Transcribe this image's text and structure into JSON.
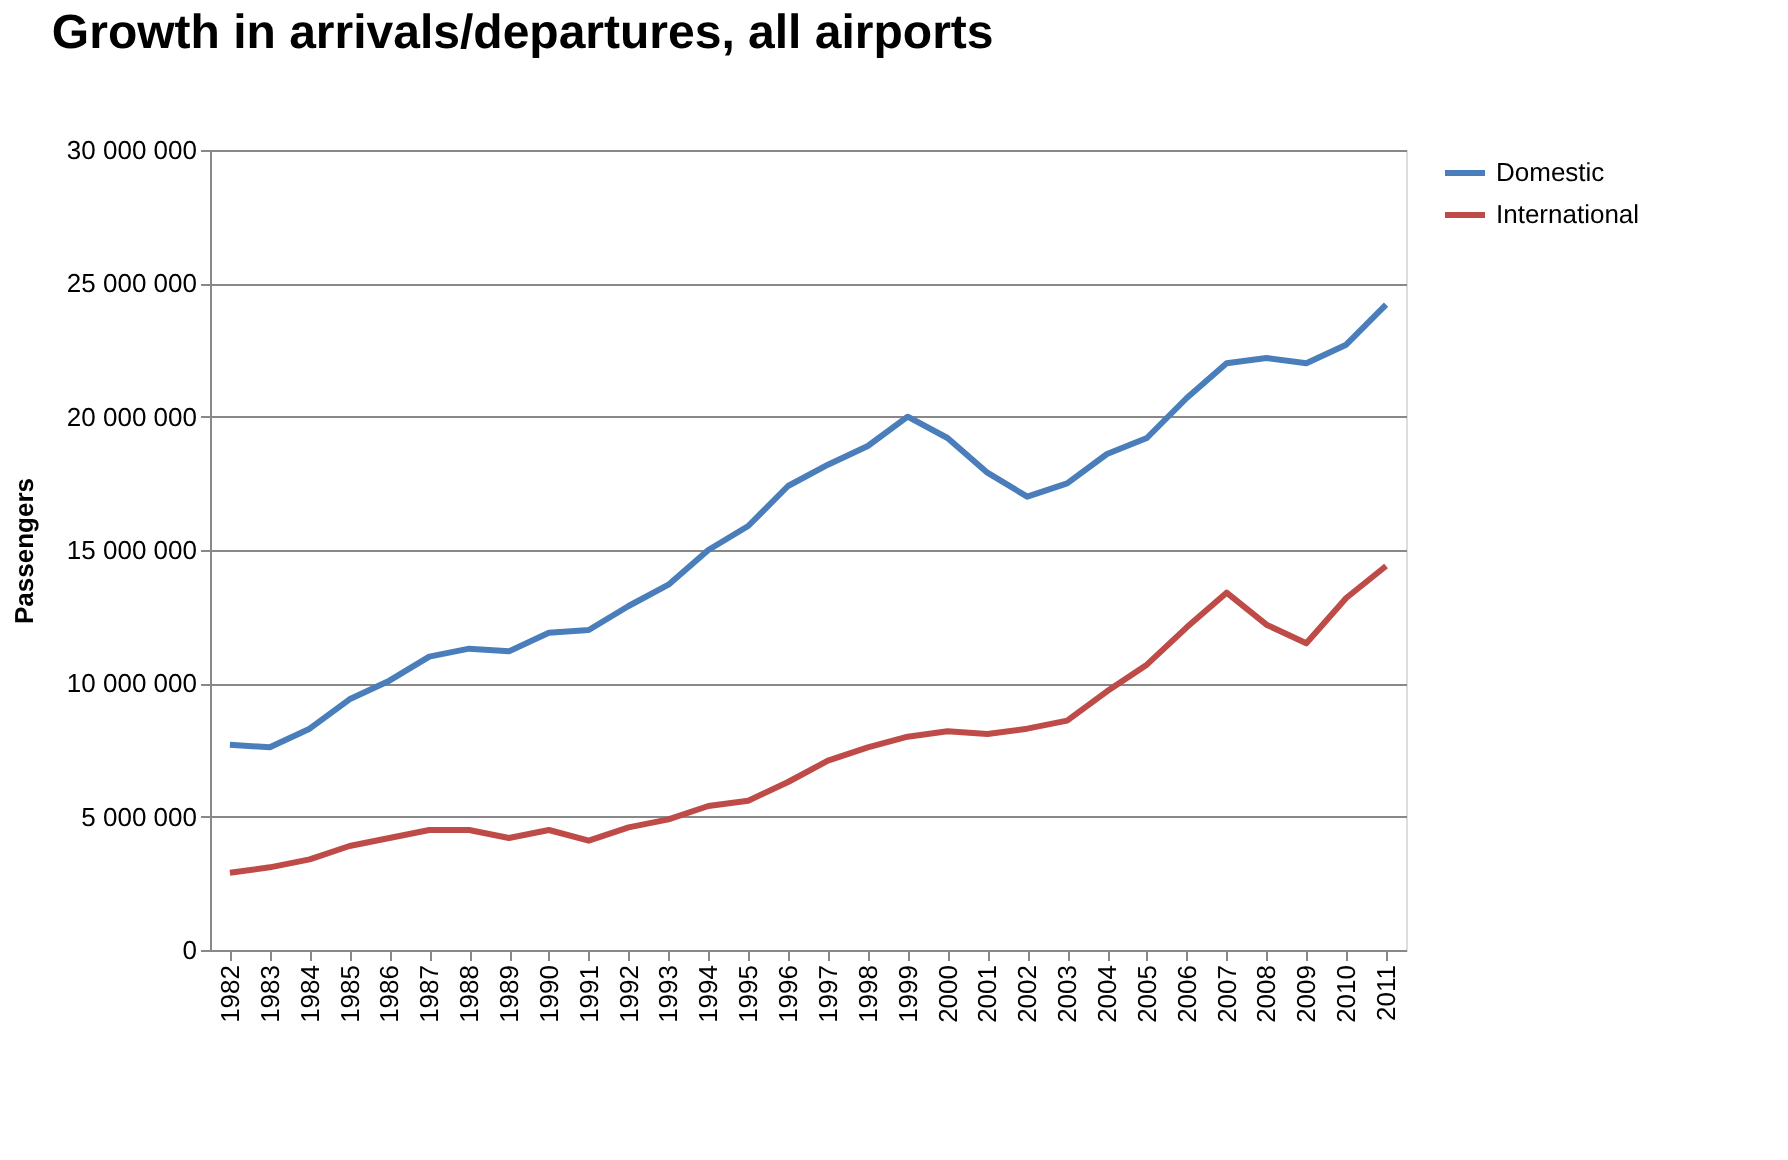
{
  "chart_data": {
    "type": "line",
    "title": "Growth in arrivals/departures, all airports",
    "ylabel": "Passengers",
    "categories": [
      "1982",
      "1983",
      "1984",
      "1985",
      "1986",
      "1987",
      "1988",
      "1989",
      "1990",
      "1991",
      "1992",
      "1993",
      "1994",
      "1995",
      "1996",
      "1997",
      "1998",
      "1999",
      "2000",
      "2001",
      "2002",
      "2003",
      "2004",
      "2005",
      "2006",
      "2007",
      "2008",
      "2009",
      "2010",
      "2011"
    ],
    "series": [
      {
        "name": "Domestic",
        "color": "#4a7ebb",
        "values": [
          7700000,
          7600000,
          8300000,
          9400000,
          10100000,
          11000000,
          11300000,
          11200000,
          11900000,
          12000000,
          12900000,
          13700000,
          15000000,
          15900000,
          17400000,
          18200000,
          18900000,
          20000000,
          19200000,
          17900000,
          17000000,
          17500000,
          18600000,
          19200000,
          20700000,
          22000000,
          22200000,
          22000000,
          22700000,
          24200000
        ]
      },
      {
        "name": "International",
        "color": "#be4b48",
        "values": [
          2900000,
          3100000,
          3400000,
          3900000,
          4200000,
          4500000,
          4500000,
          4200000,
          4500000,
          4100000,
          4600000,
          4900000,
          5400000,
          5600000,
          6300000,
          7100000,
          7600000,
          8000000,
          8200000,
          8100000,
          8300000,
          8600000,
          9700000,
          10700000,
          12100000,
          13400000,
          12200000,
          11500000,
          13200000,
          14400000
        ]
      }
    ],
    "ylim": [
      0,
      30000000
    ],
    "yticks": [
      {
        "value": 0,
        "label": "0"
      },
      {
        "value": 5000000,
        "label": "5 000 000"
      },
      {
        "value": 10000000,
        "label": "10 000 000"
      },
      {
        "value": 15000000,
        "label": "15 000 000"
      },
      {
        "value": 20000000,
        "label": "20 000 000"
      },
      {
        "value": 25000000,
        "label": "25 000 000"
      },
      {
        "value": 30000000,
        "label": "30 000 000"
      }
    ],
    "grid": "y",
    "legend": "right",
    "marker": "none",
    "line_style": "solid"
  }
}
